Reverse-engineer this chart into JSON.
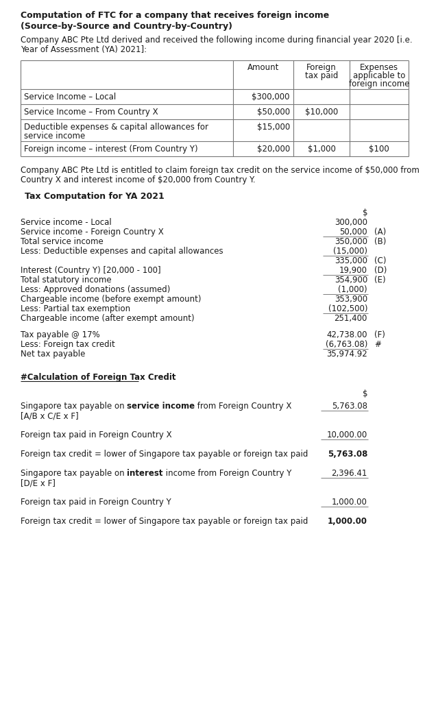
{
  "title_line1": "Computation of FTC for a company that receives foreign income",
  "title_line2": "(Source-by-Source and Country-by-Country)",
  "intro_text": "Company ABC Pte Ltd derived and received the following income during financial year 2020 [i.e.\nYear of Assessment (YA) 2021]:",
  "table_headers": [
    "",
    "Amount",
    "Foreign\ntax paid",
    "Expenses\napplicable to\nforeign income"
  ],
  "table_rows": [
    [
      "Service Income – Local",
      "$300,000",
      "",
      ""
    ],
    [
      "Service Income – From Country X",
      "$50,000",
      "$10,000",
      ""
    ],
    [
      "Deductible expenses & capital allowances for\nservice income",
      "$15,000",
      "",
      ""
    ],
    [
      "Foreign income – interest (From Country Y)",
      "$20,000",
      "$1,000",
      "$100"
    ]
  ],
  "note_text": "Company ABC Pte Ltd is entitled to claim foreign tax credit on the service income of $50,000 from\nCountry X and interest income of $20,000 from Country Y.",
  "tax_comp_title": "Tax Computation for YA 2021",
  "tax_lines": [
    {
      "label": "",
      "value": "$",
      "ref": "",
      "underline": false,
      "spacer": false
    },
    {
      "label": "Service income - Local",
      "value": "300,000",
      "ref": "",
      "underline": false,
      "spacer": false
    },
    {
      "label": "Service income - Foreign Country X",
      "value": "50,000",
      "ref": "(A)",
      "underline": true,
      "spacer": false
    },
    {
      "label": "Total service income",
      "value": "350,000",
      "ref": "(B)",
      "underline": false,
      "spacer": false
    },
    {
      "label": "Less: Deductible expenses and capital allowances",
      "value": "(15,000)",
      "ref": "",
      "underline": true,
      "spacer": false
    },
    {
      "label": "",
      "value": "335,000",
      "ref": "(C)",
      "underline": false,
      "spacer": false
    },
    {
      "label": "Interest (Country Y) [20,000 - 100]",
      "value": "19,900",
      "ref": "(D)",
      "underline": true,
      "spacer": false
    },
    {
      "label": "Total statutory income",
      "value": "354,900",
      "ref": "(E)",
      "underline": false,
      "spacer": false
    },
    {
      "label": "Less: Approved donations (assumed)",
      "value": "(1,000)",
      "ref": "",
      "underline": true,
      "spacer": false
    },
    {
      "label": "Chargeable income (before exempt amount)",
      "value": "353,900",
      "ref": "",
      "underline": false,
      "spacer": false
    },
    {
      "label": "Less: Partial tax exemption",
      "value": "(102,500)",
      "ref": "",
      "underline": true,
      "spacer": false
    },
    {
      "label": "Chargeable income (after exempt amount)",
      "value": "251,400",
      "ref": "",
      "underline": false,
      "spacer": false
    },
    {
      "label": "",
      "value": "",
      "ref": "",
      "underline": false,
      "spacer": true
    },
    {
      "label": "Tax payable @ 17%",
      "value": "42,738.00",
      "ref": "(F)",
      "underline": false,
      "spacer": false
    },
    {
      "label": "Less: Foreign tax credit",
      "value": "(6,763.08)",
      "ref": "#",
      "underline": true,
      "spacer": false
    },
    {
      "label": "Net tax payable",
      "value": "35,974.92",
      "ref": "",
      "underline": false,
      "spacer": false
    }
  ],
  "ftc_title": "#Calculation of Foreign Tax Credit",
  "ftc_lines": [
    {
      "label": "",
      "value": "$",
      "bold_words": [],
      "underline": false,
      "value_bold": false
    },
    {
      "label": "Singapore tax payable on service income from Foreign Country X",
      "label2": "[A/B x C/E x F]",
      "bold_words": [
        "service income"
      ],
      "value": "5,763.08",
      "underline": true,
      "value_bold": false
    },
    {
      "label": "Foreign tax paid in Foreign Country X",
      "label2": "",
      "bold_words": [],
      "value": "10,000.00",
      "underline": true,
      "value_bold": false
    },
    {
      "label": "Foreign tax credit = lower of Singapore tax payable or foreign tax paid",
      "label2": "",
      "bold_words": [],
      "value": "5,763.08",
      "underline": false,
      "value_bold": true
    },
    {
      "label": "Singapore tax payable on interest income from Foreign Country Y",
      "label2": "[D/E x F]",
      "bold_words": [
        "interest"
      ],
      "value": "2,396.41",
      "underline": true,
      "value_bold": false
    },
    {
      "label": "Foreign tax paid in Foreign Country Y",
      "label2": "",
      "bold_words": [],
      "value": "1,000.00",
      "underline": true,
      "value_bold": false
    },
    {
      "label": "Foreign tax credit = lower of Singapore tax payable or foreign tax paid",
      "label2": "",
      "bold_words": [],
      "value": "1,000.00",
      "underline": false,
      "value_bold": true
    }
  ],
  "bg_color": "#ffffff",
  "font_size": 8.5
}
